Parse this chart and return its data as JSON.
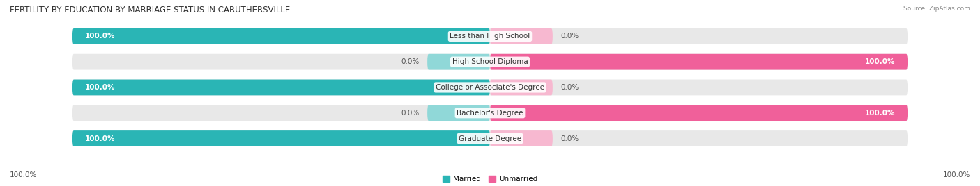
{
  "title": "FERTILITY BY EDUCATION BY MARRIAGE STATUS IN CARUTHERSVILLE",
  "source": "Source: ZipAtlas.com",
  "categories": [
    "Less than High School",
    "High School Diploma",
    "College or Associate's Degree",
    "Bachelor's Degree",
    "Graduate Degree"
  ],
  "married": [
    100.0,
    0.0,
    100.0,
    0.0,
    100.0
  ],
  "unmarried": [
    0.0,
    100.0,
    0.0,
    100.0,
    0.0
  ],
  "married_color": "#2ab5b5",
  "unmarried_color": "#f0609a",
  "married_light_color": "#90d8d8",
  "unmarried_light_color": "#f7b8d0",
  "bar_bg_color": "#e8e8e8",
  "background_color": "#ffffff",
  "title_fontsize": 8.5,
  "label_fontsize": 7.5,
  "tick_fontsize": 7.5,
  "bar_height": 0.62,
  "legend_labels": [
    "Married",
    "Unmarried"
  ],
  "bottom_labels": [
    "100.0%",
    "100.0%"
  ]
}
